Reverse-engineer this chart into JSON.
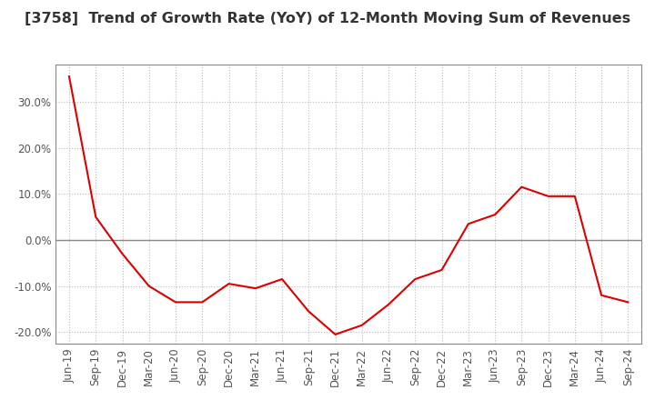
{
  "title": "[3758]  Trend of Growth Rate (YoY) of 12-Month Moving Sum of Revenues",
  "title_fontsize": 11.5,
  "line_color": "#dd0000",
  "background_color": "#ffffff",
  "grid_color": "#bbbbbb",
  "ylim": [
    -0.225,
    0.38
  ],
  "yticks": [
    -0.2,
    -0.1,
    0.0,
    0.1,
    0.2,
    0.3
  ],
  "ytick_labels": [
    "-20.0%",
    "-10.0%",
    "0.0%",
    "10.0%",
    "20.0%",
    "30.0%"
  ],
  "dates": [
    "Jun-19",
    "Sep-19",
    "Dec-19",
    "Mar-20",
    "Jun-20",
    "Sep-20",
    "Dec-20",
    "Mar-21",
    "Jun-21",
    "Sep-21",
    "Dec-21",
    "Mar-22",
    "Jun-22",
    "Sep-22",
    "Dec-22",
    "Mar-23",
    "Jun-23",
    "Sep-23",
    "Dec-23",
    "Mar-24",
    "Jun-24",
    "Sep-24"
  ],
  "values": [
    0.355,
    0.05,
    -0.03,
    -0.1,
    -0.135,
    -0.135,
    -0.095,
    -0.105,
    -0.085,
    -0.155,
    -0.205,
    -0.185,
    -0.14,
    -0.085,
    -0.065,
    0.035,
    0.055,
    0.115,
    0.095,
    0.095,
    -0.12,
    -0.135
  ],
  "zero_line_color": "#888888",
  "spine_color": "#888888",
  "tick_color": "#555555",
  "tick_fontsize": 8.5
}
